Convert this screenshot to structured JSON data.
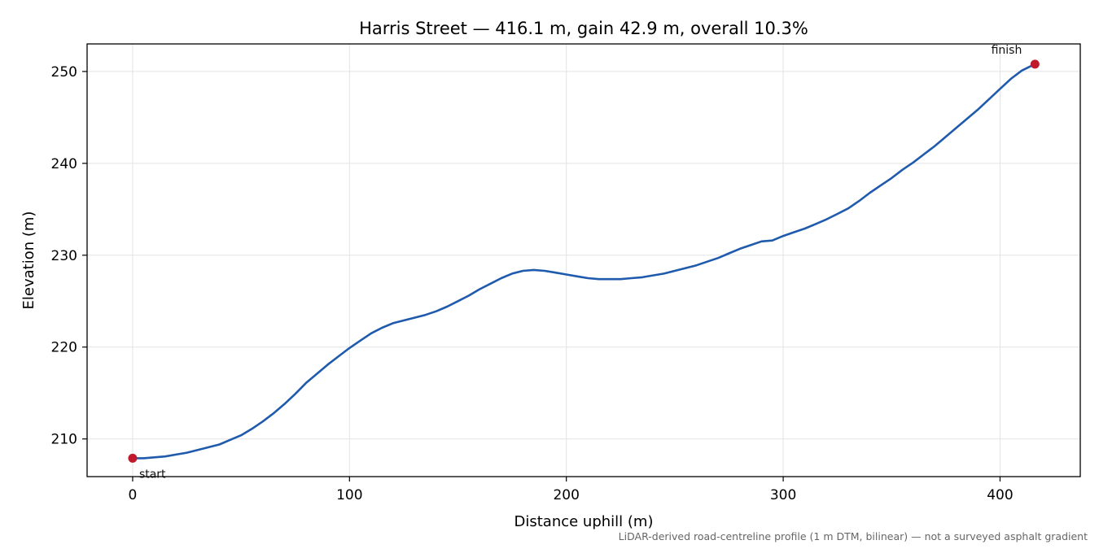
{
  "chart_data": {
    "type": "line",
    "title": "Harris Street — 416.1 m, gain 42.9 m, overall 10.3%",
    "xlabel": "Distance uphill (m)",
    "ylabel": "Elevation (m)",
    "xlim": [
      -21,
      437
    ],
    "ylim": [
      205.9,
      253.0
    ],
    "xticks": [
      "0",
      "100",
      "200",
      "300",
      "400"
    ],
    "yticks": [
      "210",
      "220",
      "230",
      "240",
      "250"
    ],
    "grid": true,
    "series": [
      {
        "color": "#1f5aad",
        "x": [
          0,
          5,
          10,
          15,
          20,
          25,
          30,
          35,
          40,
          45,
          50,
          55,
          60,
          65,
          70,
          75,
          80,
          85,
          90,
          95,
          100,
          105,
          110,
          115,
          120,
          125,
          130,
          135,
          140,
          145,
          150,
          155,
          160,
          165,
          170,
          175,
          180,
          185,
          190,
          195,
          200,
          205,
          210,
          215,
          220,
          225,
          230,
          235,
          240,
          245,
          250,
          255,
          260,
          265,
          270,
          275,
          280,
          285,
          290,
          295,
          300,
          305,
          310,
          315,
          320,
          325,
          330,
          335,
          340,
          345,
          350,
          355,
          360,
          365,
          370,
          375,
          380,
          385,
          390,
          395,
          400,
          405,
          410,
          416.1
        ],
        "y": [
          207.9,
          207.9,
          208.0,
          208.1,
          208.3,
          208.5,
          208.8,
          209.1,
          209.4,
          209.9,
          210.4,
          211.1,
          211.9,
          212.8,
          213.8,
          214.9,
          216.1,
          217.1,
          218.1,
          219.0,
          219.9,
          220.7,
          221.5,
          222.1,
          222.6,
          222.9,
          223.2,
          223.5,
          223.9,
          224.4,
          225.0,
          225.6,
          226.3,
          226.9,
          227.5,
          228.0,
          228.3,
          228.4,
          228.3,
          228.1,
          227.9,
          227.7,
          227.5,
          227.4,
          227.4,
          227.4,
          227.5,
          227.6,
          227.8,
          228.0,
          228.3,
          228.6,
          228.9,
          229.3,
          229.7,
          230.2,
          230.7,
          231.1,
          231.5,
          231.6,
          232.1,
          232.5,
          232.9,
          233.4,
          233.9,
          234.5,
          235.1,
          235.9,
          236.8,
          237.6,
          238.4,
          239.3,
          240.1,
          241.0,
          241.9,
          242.9,
          243.9,
          244.9,
          245.9,
          247.0,
          248.1,
          249.2,
          250.1,
          250.8
        ]
      }
    ],
    "markers": [
      {
        "label": "start",
        "x": 0,
        "y": 207.9,
        "color": "#c0182c"
      },
      {
        "label": "finish",
        "x": 416.1,
        "y": 250.8,
        "color": "#c0182c"
      }
    ],
    "footnote": "LiDAR-derived road-centreline profile (1 m DTM, bilinear) — not a surveyed asphalt gradient"
  }
}
